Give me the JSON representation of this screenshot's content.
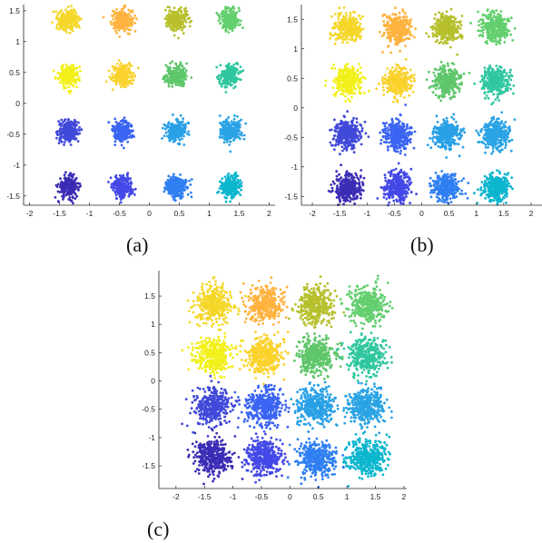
{
  "captions": [
    "(a)",
    "(b)",
    "(c)"
  ],
  "colors": {
    "clusters": [
      "#3b2cb5",
      "#4049d9",
      "#f2f01a",
      "#f5d72a",
      "#4448e6",
      "#3a64f2",
      "#fad22c",
      "#ffb33f",
      "#2f7ff2",
      "#29a0e6",
      "#5fc66b",
      "#b7c02c",
      "#0bb6ce",
      "#2aa3e4",
      "#30c7a0",
      "#63cf6e"
    ],
    "axes": "#222222",
    "background": "#ffffff"
  },
  "chart_data": [
    {
      "type": "scatter",
      "panel": "(a)",
      "xlim": [
        -2.1,
        2.1
      ],
      "ylim": [
        -1.65,
        1.6
      ],
      "xticks": [
        -2,
        -1.5,
        -1,
        -0.5,
        0,
        0.5,
        1,
        1.5,
        2
      ],
      "xtick_labels": [
        "-2",
        "-1.5",
        "-1",
        "-0.5",
        "0",
        "0.5",
        "1",
        "1.5",
        "2"
      ],
      "yticks": [
        -1.5,
        -1,
        -0.5,
        0,
        0.5,
        1,
        1.5
      ],
      "ytick_labels": [
        "-1.5",
        "-1",
        "-0.5",
        "0",
        "0.5",
        "1",
        "1.5"
      ],
      "grid": false,
      "cluster_std": 0.085,
      "points_per_cluster": 240,
      "clusters": [
        {
          "x": -1.35,
          "y": -1.35
        },
        {
          "x": -1.35,
          "y": -0.45
        },
        {
          "x": -1.35,
          "y": 0.45
        },
        {
          "x": -1.35,
          "y": 1.35
        },
        {
          "x": -0.45,
          "y": -1.35
        },
        {
          "x": -0.45,
          "y": -0.45
        },
        {
          "x": -0.45,
          "y": 0.45
        },
        {
          "x": -0.45,
          "y": 1.35
        },
        {
          "x": 0.45,
          "y": -1.35
        },
        {
          "x": 0.45,
          "y": -0.45
        },
        {
          "x": 0.45,
          "y": 0.45
        },
        {
          "x": 0.45,
          "y": 1.35
        },
        {
          "x": 1.35,
          "y": -1.35
        },
        {
          "x": 1.35,
          "y": -0.45
        },
        {
          "x": 1.35,
          "y": 0.45
        },
        {
          "x": 1.35,
          "y": 1.35
        }
      ]
    },
    {
      "type": "scatter",
      "panel": "(b)",
      "xlim": [
        -2.2,
        2.2
      ],
      "ylim": [
        -1.65,
        1.75
      ],
      "xticks": [
        -2,
        -1.5,
        -1,
        -0.5,
        0,
        0.5,
        1,
        1.5,
        2
      ],
      "xtick_labels": [
        "-2",
        "-1.5",
        "-1",
        "-0.5",
        "0",
        "0.5",
        "1",
        "1.5",
        "2"
      ],
      "yticks": [
        -1.5,
        -1,
        -0.5,
        0,
        0.5,
        1,
        1.5
      ],
      "ytick_labels": [
        "-1.5",
        "-1",
        "-0.5",
        "0",
        "0.5",
        "1",
        "1.5"
      ],
      "grid": false,
      "cluster_std": 0.12,
      "points_per_cluster": 320,
      "clusters": [
        {
          "x": -1.35,
          "y": -1.35
        },
        {
          "x": -1.35,
          "y": -0.45
        },
        {
          "x": -1.35,
          "y": 0.45
        },
        {
          "x": -1.35,
          "y": 1.35
        },
        {
          "x": -0.45,
          "y": -1.35
        },
        {
          "x": -0.45,
          "y": -0.45
        },
        {
          "x": -0.45,
          "y": 0.45
        },
        {
          "x": -0.45,
          "y": 1.35
        },
        {
          "x": 0.45,
          "y": -1.35
        },
        {
          "x": 0.45,
          "y": -0.45
        },
        {
          "x": 0.45,
          "y": 0.45
        },
        {
          "x": 0.45,
          "y": 1.35
        },
        {
          "x": 1.35,
          "y": -1.35
        },
        {
          "x": 1.35,
          "y": -0.45
        },
        {
          "x": 1.35,
          "y": 0.45
        },
        {
          "x": 1.35,
          "y": 1.35
        }
      ]
    },
    {
      "type": "scatter",
      "panel": "(c)",
      "xlim": [
        -2.3,
        2.05
      ],
      "ylim": [
        -1.9,
        1.95
      ],
      "xticks": [
        -2,
        -1.5,
        -1,
        -0.5,
        0,
        0.5,
        1,
        1.5,
        2
      ],
      "xtick_labels": [
        "-2",
        "-1.5",
        "-1",
        "-0.5",
        "0",
        "0.5",
        "1",
        "1.5",
        "2"
      ],
      "yticks": [
        -1.5,
        -1,
        -0.5,
        0,
        0.5,
        1,
        1.5
      ],
      "ytick_labels": [
        "-1.5",
        "-1",
        "-0.5",
        "0",
        "0.5",
        "1",
        "1.5"
      ],
      "grid": false,
      "cluster_std": 0.16,
      "points_per_cluster": 380,
      "clusters": [
        {
          "x": -1.35,
          "y": -1.35
        },
        {
          "x": -1.35,
          "y": -0.45
        },
        {
          "x": -1.35,
          "y": 0.45
        },
        {
          "x": -1.35,
          "y": 1.35
        },
        {
          "x": -0.45,
          "y": -1.35
        },
        {
          "x": -0.45,
          "y": -0.45
        },
        {
          "x": -0.45,
          "y": 0.45
        },
        {
          "x": -0.45,
          "y": 1.35
        },
        {
          "x": 0.45,
          "y": -1.35
        },
        {
          "x": 0.45,
          "y": -0.45
        },
        {
          "x": 0.45,
          "y": 0.45
        },
        {
          "x": 0.45,
          "y": 1.35
        },
        {
          "x": 1.35,
          "y": -1.35
        },
        {
          "x": 1.35,
          "y": -0.45
        },
        {
          "x": 1.35,
          "y": 0.45
        },
        {
          "x": 1.35,
          "y": 1.35
        }
      ]
    }
  ]
}
